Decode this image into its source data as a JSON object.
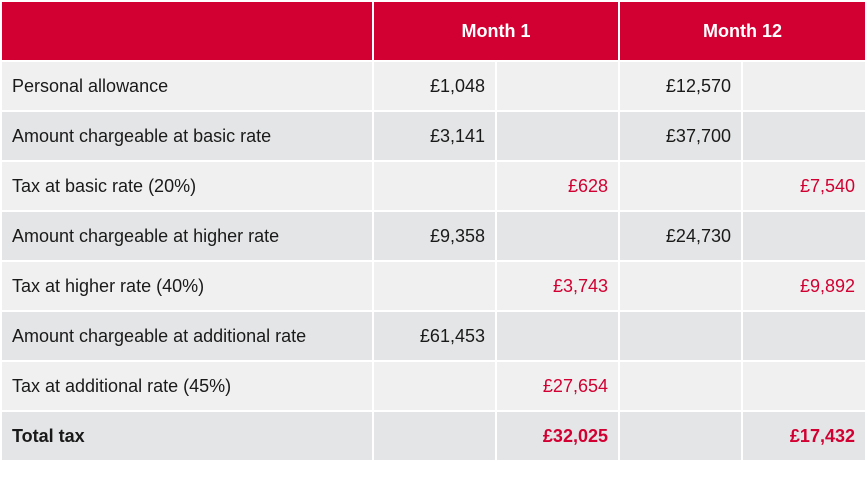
{
  "table": {
    "columns": [
      "Month 1",
      "Month 12"
    ],
    "rows": [
      {
        "label": "Personal allowance",
        "cells": [
          "£1,048",
          null,
          "£12,570",
          null
        ]
      },
      {
        "label": "Amount chargeable at basic rate",
        "cells": [
          "£3,141",
          null,
          "£37,700",
          null
        ]
      },
      {
        "label": "Tax at basic rate (20%)",
        "cells": [
          null,
          "£628",
          null,
          "£7,540"
        ]
      },
      {
        "label": "Amount chargeable at higher rate",
        "cells": [
          "£9,358",
          null,
          "£24,730",
          null
        ]
      },
      {
        "label": "Tax at higher rate (40%)",
        "cells": [
          null,
          "£3,743",
          null,
          "£9,892"
        ]
      },
      {
        "label": "Amount chargeable at additional rate",
        "cells": [
          "£61,453",
          null,
          null,
          null
        ]
      },
      {
        "label": "Tax at additional rate (45%)",
        "cells": [
          null,
          "£27,654",
          null,
          null
        ]
      },
      {
        "label": "Total tax",
        "cells": [
          null,
          "£32,025",
          null,
          "£17,432"
        ],
        "bold": true
      }
    ]
  }
}
